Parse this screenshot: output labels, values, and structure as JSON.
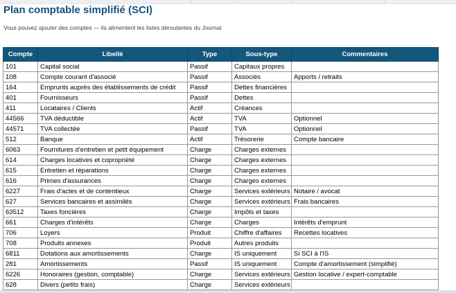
{
  "page": {
    "title": "Plan comptable simplifié (SCI)",
    "subtitle": "Vous pouvez ajouter des comptes — ils alimentent les listes déroulantes du Journal"
  },
  "colors": {
    "header_bg": "#14577d",
    "title_text": "#14527a",
    "cell_border": "#979797",
    "top_strip_bg": "#edeef2",
    "bottom_strip_bg": "#d9e4f0"
  },
  "table": {
    "columns": [
      "Compte",
      "Libellé",
      "Type",
      "Sous-type",
      "Commentaires"
    ],
    "rows": [
      {
        "compte": "101",
        "libelle": "Capital social",
        "type": "Passif",
        "sous_type": "Capitaux propres",
        "commentaires": ""
      },
      {
        "compte": "108",
        "libelle": "Compte courant d'associé",
        "type": "Passif",
        "sous_type": "Associés",
        "commentaires": "Apports / retraits"
      },
      {
        "compte": "164",
        "libelle": "Emprunts auprès des établissements de crédit",
        "type": "Passif",
        "sous_type": "Dettes financières",
        "commentaires": ""
      },
      {
        "compte": "401",
        "libelle": "Fournisseurs",
        "type": "Passif",
        "sous_type": "Dettes",
        "commentaires": ""
      },
      {
        "compte": "411",
        "libelle": "Locataires / Clients",
        "type": "Actif",
        "sous_type": "Créances",
        "commentaires": ""
      },
      {
        "compte": "44566",
        "libelle": "TVA déductible",
        "type": "Actif",
        "sous_type": "TVA",
        "commentaires": "Optionnel"
      },
      {
        "compte": "44571",
        "libelle": "TVA collectée",
        "type": "Passif",
        "sous_type": "TVA",
        "commentaires": "Optionnel"
      },
      {
        "compte": "512",
        "libelle": "Banque",
        "type": "Actif",
        "sous_type": "Trésorerie",
        "commentaires": "Compte bancaire"
      },
      {
        "compte": "6063",
        "libelle": "Fournitures d'entretien et petit équipement",
        "type": "Charge",
        "sous_type": "Charges externes",
        "commentaires": ""
      },
      {
        "compte": "614",
        "libelle": "Charges locatives et copropriété",
        "type": "Charge",
        "sous_type": "Charges externes",
        "commentaires": ""
      },
      {
        "compte": "615",
        "libelle": "Entretien et réparations",
        "type": "Charge",
        "sous_type": "Charges externes",
        "commentaires": ""
      },
      {
        "compte": "616",
        "libelle": "Primes d'assurances",
        "type": "Charge",
        "sous_type": "Charges externes",
        "commentaires": ""
      },
      {
        "compte": "6227",
        "libelle": "Frais d'actes et de contentieux",
        "type": "Charge",
        "sous_type": "Services extérieurs",
        "commentaires": "Notaire / avocat"
      },
      {
        "compte": "627",
        "libelle": "Services bancaires et assimilés",
        "type": "Charge",
        "sous_type": "Services extérieurs",
        "commentaires": "Frais bancaires"
      },
      {
        "compte": "63512",
        "libelle": "Taxes foncières",
        "type": "Charge",
        "sous_type": "Impôts et taxes",
        "commentaires": ""
      },
      {
        "compte": "661",
        "libelle": "Charges d'intérêts",
        "type": "Charge",
        "sous_type": "Charges",
        "commentaires": "Intérêts d'emprunt"
      },
      {
        "compte": "706",
        "libelle": "Loyers",
        "type": "Produit",
        "sous_type": "Chiffre d'affaires",
        "commentaires": "Recettes locatives"
      },
      {
        "compte": "708",
        "libelle": "Produits annexes",
        "type": "Produit",
        "sous_type": "Autres produits",
        "commentaires": ""
      },
      {
        "compte": "6811",
        "libelle": "Dotations aux amortissements",
        "type": "Charge",
        "sous_type": "IS uniquement",
        "commentaires": "Si SCI à l'IS"
      },
      {
        "compte": "281",
        "libelle": "Amortissements",
        "type": "Passif",
        "sous_type": "IS uniquement",
        "commentaires": "Compte d'amortissement (simplifié)"
      },
      {
        "compte": "6226",
        "libelle": "Honoraires (gestion, comptable)",
        "type": "Charge",
        "sous_type": "Services extérieurs",
        "commentaires": "Gestion locative / expert-comptable"
      },
      {
        "compte": "628",
        "libelle": "Divers (petits frais)",
        "type": "Charge",
        "sous_type": "Services extérieurs",
        "commentaires": ""
      }
    ]
  }
}
